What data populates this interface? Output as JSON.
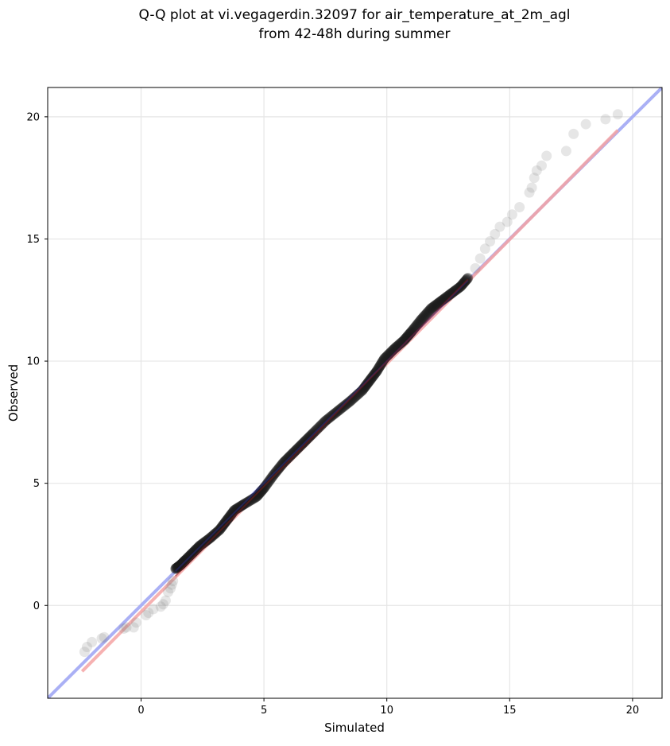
{
  "chart_data": {
    "type": "scatter",
    "title": "Q-Q plot at vi.vegagerdin.32097 for air_temperature_at_2m_agl",
    "subtitle": "from 42-48h during summer",
    "xlabel": "Simulated",
    "ylabel": "Observed",
    "xlim": [
      -3.8,
      21.2
    ],
    "ylim": [
      -3.8,
      21.2
    ],
    "xticks": [
      0,
      5,
      10,
      15,
      20
    ],
    "yticks": [
      0,
      5,
      10,
      15,
      20
    ],
    "grid": true,
    "legend": "none",
    "reference_line": {
      "x": [
        -3.8,
        21.2
      ],
      "y": [
        -3.8,
        21.2
      ],
      "color": "#aab0f5"
    },
    "fit_line": {
      "x": [
        -2.4,
        19.4
      ],
      "y": [
        -2.7,
        19.45
      ],
      "color": "#f4a3a3"
    },
    "tail_points": {
      "x": [
        -2.3,
        -2.2,
        -2.0,
        -1.6,
        -1.5,
        -0.7,
        -0.6,
        -0.3,
        -0.2,
        0.2,
        0.3,
        0.5,
        0.8,
        0.9,
        1.0,
        1.1,
        1.2,
        1.25,
        1.3,
        13.6,
        13.8,
        14.0,
        14.2,
        14.4,
        14.6,
        14.9,
        15.1,
        15.4,
        15.8,
        15.9,
        16.0,
        16.1,
        16.3,
        16.5,
        17.3,
        17.6,
        18.1,
        18.9,
        19.4
      ],
      "y": [
        -1.9,
        -1.7,
        -1.5,
        -1.35,
        -1.3,
        -0.95,
        -0.9,
        -0.9,
        -0.7,
        -0.4,
        -0.3,
        -0.15,
        -0.05,
        0.05,
        0.2,
        0.55,
        0.7,
        0.85,
        1.0,
        13.8,
        14.2,
        14.6,
        14.9,
        15.2,
        15.5,
        15.7,
        16.0,
        16.3,
        16.9,
        17.1,
        17.5,
        17.8,
        18.0,
        18.4,
        18.6,
        19.3,
        19.7,
        19.9,
        20.1
      ],
      "color": "#808080"
    },
    "dense_points": {
      "x": [
        1.4,
        1.6,
        1.8,
        2.1,
        2.4,
        2.8,
        3.2,
        3.5,
        3.8,
        4.2,
        4.7,
        5.0,
        5.4,
        5.8,
        6.2,
        6.6,
        7.0,
        7.5,
        8.0,
        8.5,
        9.0,
        9.3,
        9.6,
        9.9,
        10.3,
        10.7,
        11.0,
        11.4,
        11.8,
        12.2,
        12.6,
        13.0,
        13.3
      ],
      "y": [
        1.5,
        1.65,
        1.85,
        2.15,
        2.45,
        2.75,
        3.1,
        3.5,
        3.9,
        4.15,
        4.45,
        4.8,
        5.35,
        5.85,
        6.25,
        6.65,
        7.05,
        7.55,
        7.95,
        8.35,
        8.8,
        9.2,
        9.6,
        10.1,
        10.5,
        10.85,
        11.2,
        11.7,
        12.15,
        12.45,
        12.75,
        13.05,
        13.4
      ],
      "color": "#1c1c1c"
    }
  }
}
